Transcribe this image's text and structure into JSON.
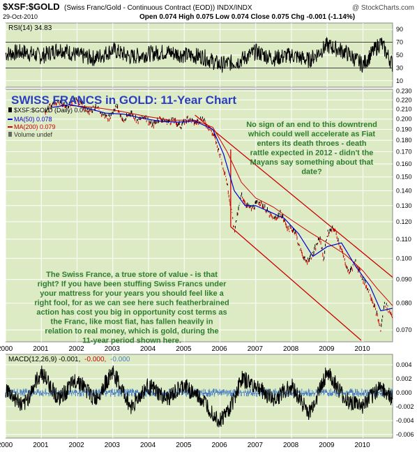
{
  "header": {
    "symbol": "$XSF:$GOLD",
    "description": "(Swiss Franc/Gold - Continuous Contract (EOD))  INDX/INDX",
    "watermark": "@ StockCharts.com",
    "date": "29-Oct-2010",
    "ohlc": "Open 0.074  High 0.075  Low 0.074  Close 0.075  Chg -0.001 (-1.14%)",
    "ohlc_direction": "down"
  },
  "rsi_panel": {
    "label": "RSI(14) 34.83",
    "ticks": [
      90,
      70,
      50,
      30,
      10
    ],
    "overbought": 70,
    "oversold": 30,
    "current": 34.83
  },
  "price_panel": {
    "title": "SWISS FRANCS in GOLD: 11-Year Chart",
    "legend": [
      {
        "label": "$XSF:$GOLD (Daily) 0.075",
        "color": "#000000",
        "marker": "candle"
      },
      {
        "label": "MA(50) 0.078",
        "color": "#0000cc",
        "marker": "line"
      },
      {
        "label": "MA(200) 0.079",
        "color": "#cc0000",
        "marker": "line"
      },
      {
        "label": "Volume undef",
        "color": "#666666",
        "marker": "bars"
      }
    ],
    "ticks": [
      "0.230",
      "0.220",
      "0.210",
      "0.200",
      "0.190",
      "0.180",
      "0.170",
      "0.160",
      "0.150",
      "0.140",
      "0.130",
      "0.120",
      "0.110",
      "0.100",
      "0.090",
      "0.080",
      "0.070"
    ],
    "annotation_right": "No sign of an end to this downtrend which could well accelerate as Fiat enters its death throes - death rattle expected in 2012 - didn't the Mayans say something about that date?",
    "annotation_left": "The Swiss France, a true store of value - is that right? If you have been stuffing Swiss Francs under your mattress for your years you should feel like a right fool, for as we can see here such featherbrained action has cost you big in opportunity cost terms as the Franc, like most fiat, has fallen heavily in relation to real money, which is gold, during the 11-year period shown here.",
    "annotation_color": "#2e7d2e"
  },
  "x_axis": {
    "years": [
      "2000",
      "2001",
      "2002",
      "2003",
      "2004",
      "2005",
      "2006",
      "2007",
      "2008",
      "2009",
      "2010"
    ]
  },
  "macd_panel": {
    "label_prefix": "MACD(12,26,9) -0.001,",
    "label_signal": "-0.000,",
    "label_hist": "-0.000",
    "ticks": [
      "0.004",
      "0.002",
      "0.000",
      "-0.002",
      "-0.004",
      "-0.006"
    ]
  },
  "colors": {
    "panel_bg": "#dcebc4",
    "grid": "#ffffff",
    "price": "#000000",
    "down_bar": "#cc0000",
    "ma50": "#0000cc",
    "ma200": "#cc0000",
    "channel": "#cc0000",
    "title": "#2a3fbf",
    "macd_hist": "#4a7fbf"
  },
  "chart_data": {
    "type": "line",
    "title": "SWISS FRANCS in GOLD: 11-Year Chart",
    "xlabel": "",
    "ylabel": "",
    "x_range": [
      2000.0,
      2010.83
    ],
    "ylim": [
      0.066,
      0.232
    ],
    "y_scale": "log",
    "series": [
      {
        "name": "$XSF:$GOLD (Daily) 0.075",
        "x": [
          2001.1,
          2001.3,
          2001.5,
          2001.7,
          2001.9,
          2002.1,
          2002.3,
          2002.5,
          2002.7,
          2002.9,
          2003.1,
          2003.3,
          2003.5,
          2003.7,
          2003.9,
          2004.1,
          2004.3,
          2004.5,
          2004.7,
          2004.9,
          2005.1,
          2005.3,
          2005.5,
          2005.7,
          2005.85,
          2006.0,
          2006.15,
          2006.3,
          2006.4,
          2006.5,
          2006.6,
          2006.75,
          2006.9,
          2007.1,
          2007.3,
          2007.5,
          2007.7,
          2007.9,
          2008.1,
          2008.2,
          2008.4,
          2008.6,
          2008.8,
          2008.9,
          2009.0,
          2009.2,
          2009.4,
          2009.6,
          2009.8,
          2010.0,
          2010.2,
          2010.4,
          2010.5,
          2010.6,
          2010.7,
          2010.83
        ],
        "values": [
          0.208,
          0.214,
          0.218,
          0.212,
          0.221,
          0.216,
          0.208,
          0.212,
          0.205,
          0.201,
          0.214,
          0.197,
          0.207,
          0.198,
          0.203,
          0.193,
          0.201,
          0.197,
          0.199,
          0.193,
          0.201,
          0.196,
          0.201,
          0.191,
          0.183,
          0.167,
          0.152,
          0.13,
          0.115,
          0.125,
          0.137,
          0.13,
          0.128,
          0.133,
          0.127,
          0.121,
          0.125,
          0.116,
          0.115,
          0.107,
          0.098,
          0.102,
          0.111,
          0.099,
          0.113,
          0.116,
          0.104,
          0.093,
          0.098,
          0.09,
          0.084,
          0.075,
          0.07,
          0.08,
          0.078,
          0.075
        ]
      },
      {
        "name": "MA(50) 0.078",
        "x": [
          2001.3,
          2001.8,
          2002.3,
          2002.8,
          2003.3,
          2003.8,
          2004.3,
          2004.8,
          2005.3,
          2005.8,
          2006.1,
          2006.4,
          2006.7,
          2007.0,
          2007.4,
          2007.8,
          2008.2,
          2008.6,
          2009.0,
          2009.4,
          2009.8,
          2010.2,
          2010.5,
          2010.83
        ],
        "values": [
          0.212,
          0.215,
          0.211,
          0.206,
          0.205,
          0.201,
          0.198,
          0.197,
          0.198,
          0.19,
          0.168,
          0.14,
          0.13,
          0.13,
          0.126,
          0.122,
          0.113,
          0.101,
          0.106,
          0.108,
          0.096,
          0.087,
          0.077,
          0.078
        ]
      },
      {
        "name": "MA(200) 0.079",
        "x": [
          2001.8,
          2002.5,
          2003.2,
          2003.9,
          2004.6,
          2005.3,
          2005.8,
          2006.2,
          2006.6,
          2007.0,
          2007.5,
          2008.0,
          2008.5,
          2009.0,
          2009.5,
          2010.0,
          2010.4,
          2010.83
        ],
        "values": [
          0.214,
          0.212,
          0.208,
          0.203,
          0.199,
          0.199,
          0.192,
          0.17,
          0.146,
          0.135,
          0.129,
          0.121,
          0.114,
          0.108,
          0.102,
          0.094,
          0.086,
          0.079
        ]
      }
    ],
    "channel_lines": [
      {
        "x": [
          2005.3,
          2010.83
        ],
        "values": [
          0.204,
          0.091
        ]
      },
      {
        "x": [
          2006.3,
          2009.95
        ],
        "values": [
          0.117,
          0.0665
        ]
      },
      {
        "x": [
          2006.3,
          2006.3
        ],
        "values": [
          0.172,
          0.117
        ]
      }
    ],
    "rsi": {
      "x": [
        2000.0,
        2000.5,
        2001.0,
        2001.5,
        2002.0,
        2002.5,
        2003.0,
        2003.5,
        2004.0,
        2004.5,
        2005.0,
        2005.5,
        2006.0,
        2006.5,
        2007.0,
        2007.5,
        2008.0,
        2008.5,
        2009.0,
        2009.5,
        2010.0,
        2010.5,
        2010.83
      ],
      "values": [
        52,
        55,
        48,
        60,
        50,
        45,
        58,
        47,
        52,
        55,
        50,
        48,
        35,
        40,
        55,
        45,
        50,
        42,
        65,
        55,
        35,
        70,
        34.83
      ]
    },
    "macd": {
      "x": [
        2000.0,
        2000.5,
        2001.0,
        2001.5,
        2002.0,
        2002.5,
        2003.0,
        2003.5,
        2004.0,
        2004.5,
        2005.0,
        2005.5,
        2006.0,
        2006.3,
        2006.6,
        2007.0,
        2007.5,
        2008.0,
        2008.5,
        2009.0,
        2009.5,
        2010.0,
        2010.5,
        2010.83
      ],
      "values": [
        0.0005,
        -0.002,
        0.003,
        -0.001,
        0.002,
        -0.001,
        0.003,
        -0.002,
        0.001,
        -0.001,
        0.001,
        -0.001,
        -0.004,
        -0.002,
        0.002,
        0.001,
        -0.001,
        0.001,
        -0.003,
        0.003,
        -0.001,
        -0.002,
        0.001,
        -0.001
      ],
      "ylim": [
        -0.0065,
        0.0055
      ]
    }
  }
}
